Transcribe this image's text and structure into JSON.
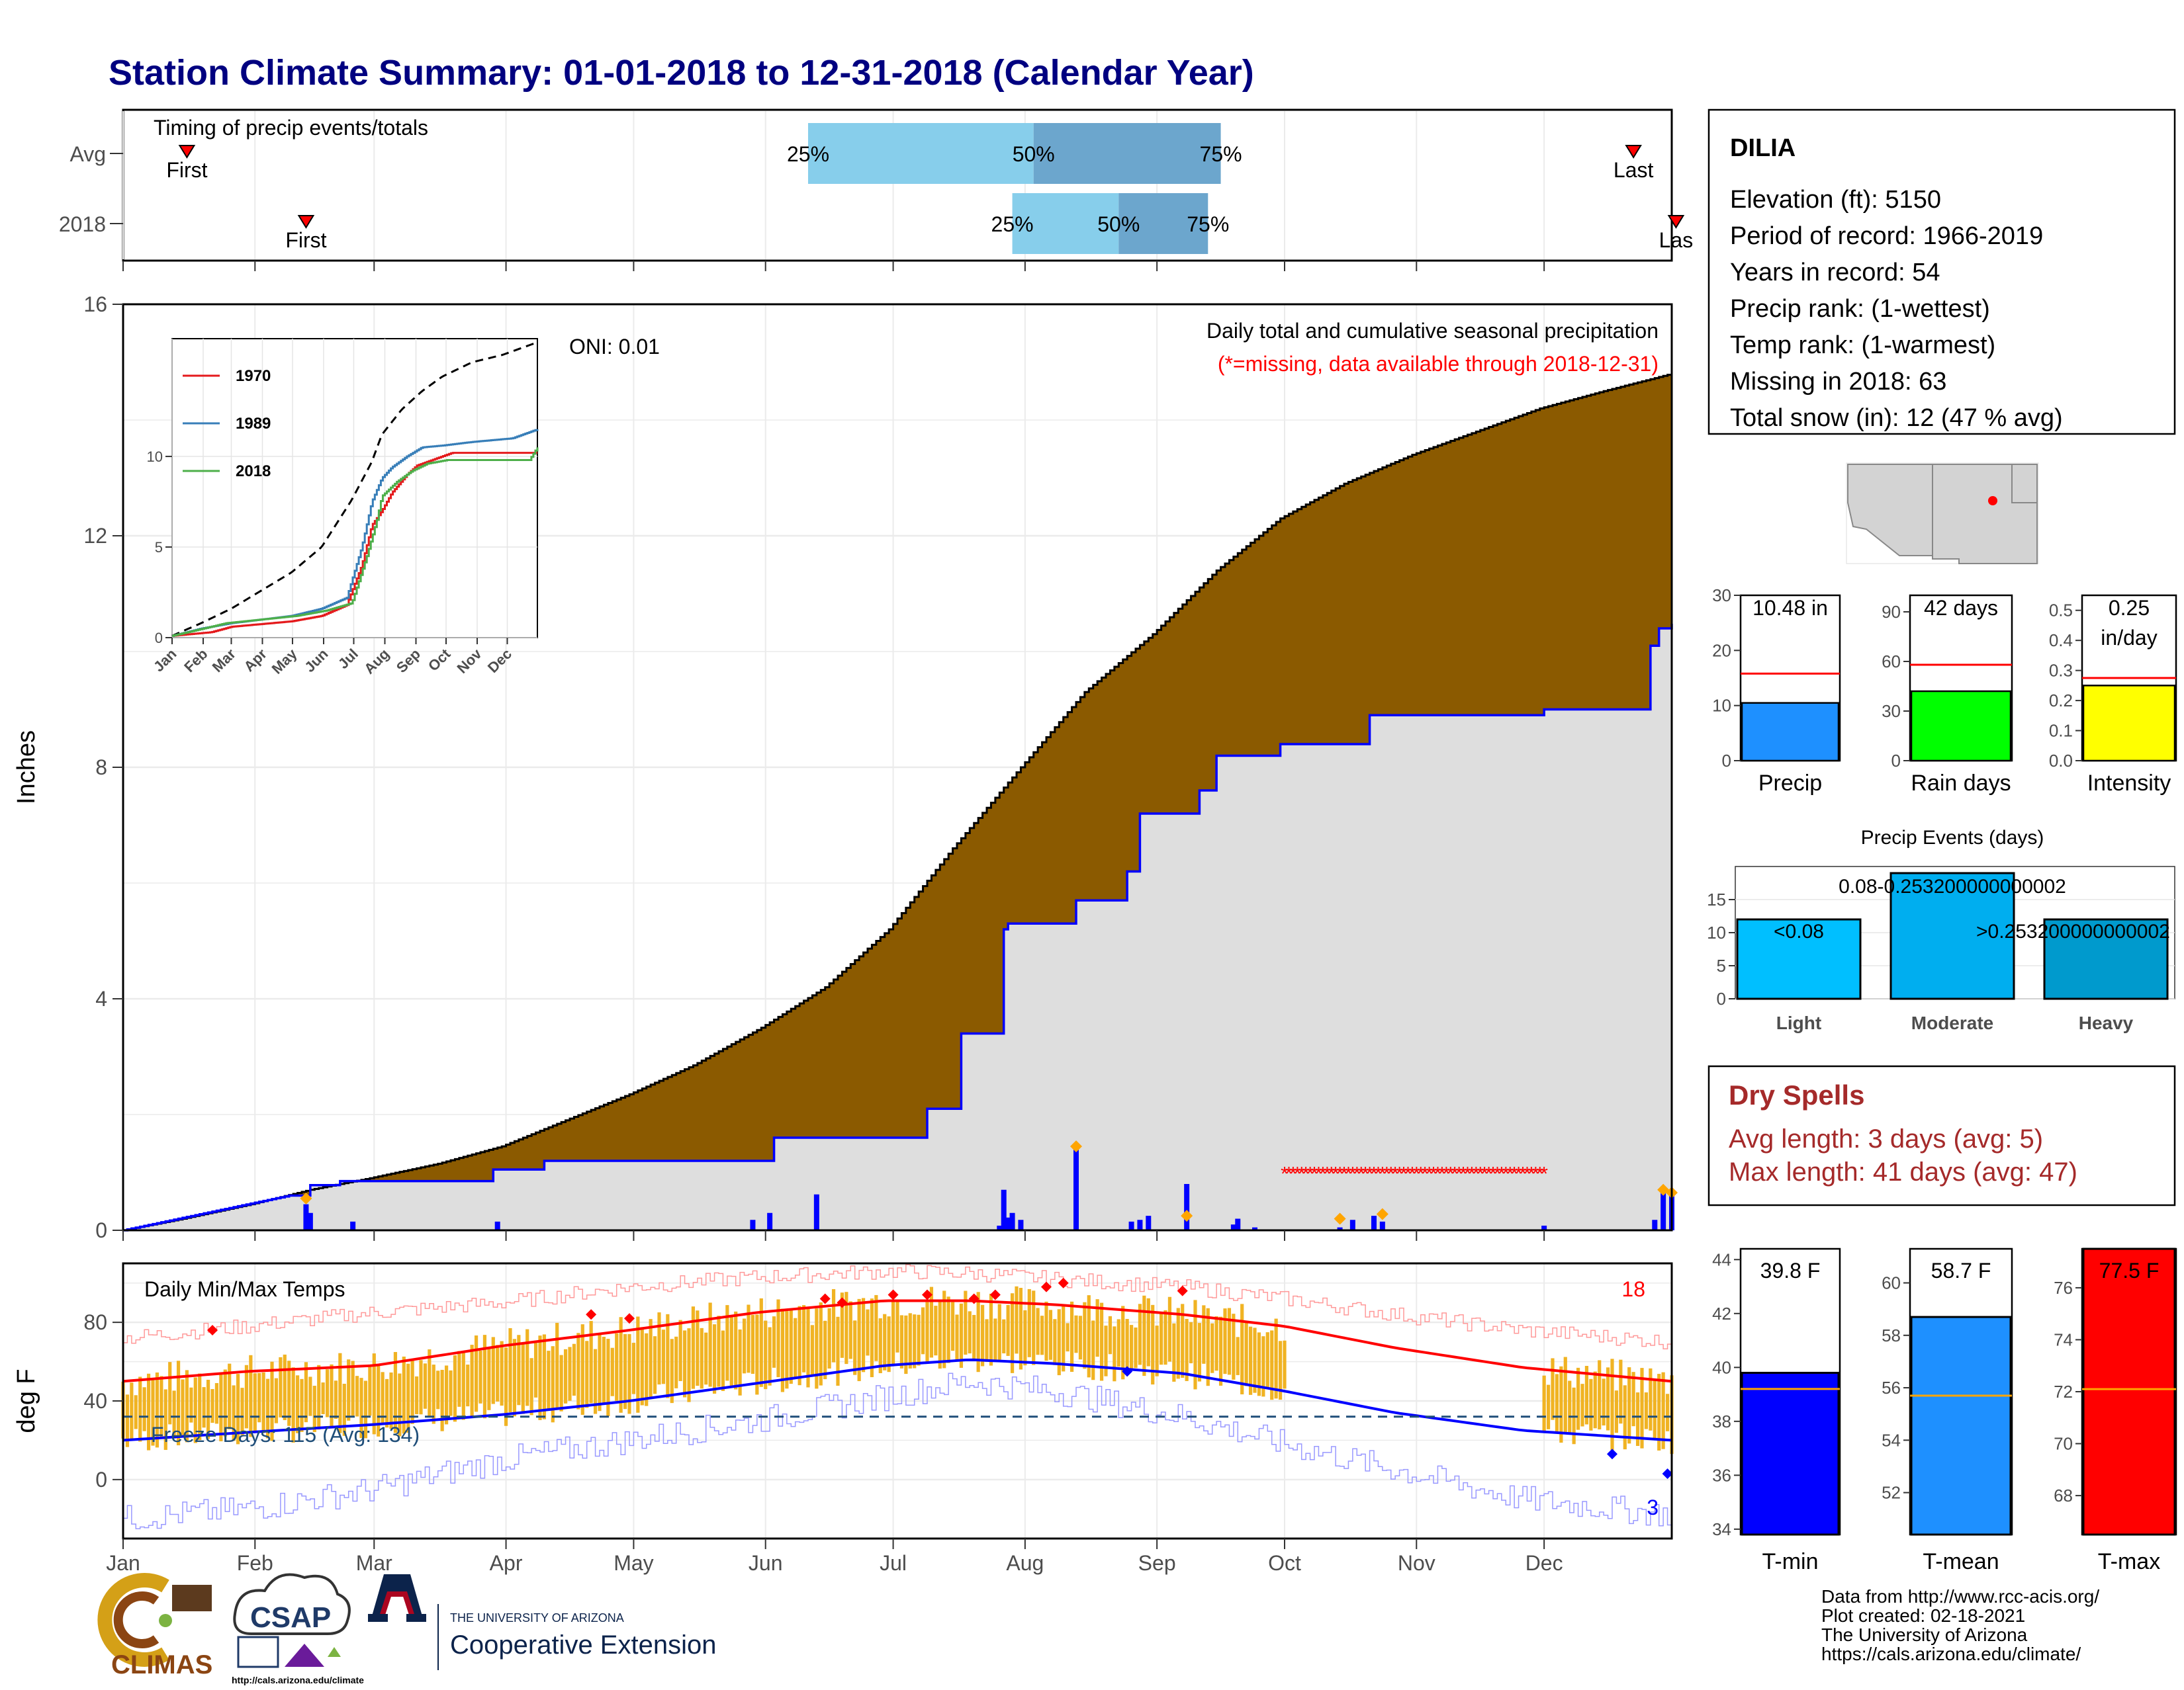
{
  "title": "Station Climate Summary: 01-01-2018 to 12-31-2018 (Calendar Year)",
  "colors": {
    "title": "#000080",
    "brown": "#8B5A00",
    "gray_fill": "#DEDEDE",
    "blue": "#0000FF",
    "light_blue": "#87CEEB",
    "mid_blue": "#6CA6CD",
    "orange": "#F0B323",
    "red": "#FF0000",
    "green": "#00FF00",
    "yellow": "#FFFF00",
    "dodger": "#1E90FF",
    "deep_sky": "#00BFFF",
    "dry_red": "#A52A2A",
    "navy_dash": "#1F4E79"
  },
  "months": [
    "Jan",
    "Feb",
    "Mar",
    "Apr",
    "May",
    "Jun",
    "Jul",
    "Aug",
    "Sep",
    "Oct",
    "Nov",
    "Dec"
  ],
  "timing": {
    "label": "Timing of precip events/totals",
    "rows": [
      {
        "name": "Avg",
        "first_label": "First",
        "last_label": "Last",
        "first_doy": 16,
        "last_doy": 356,
        "p25_label": "25%",
        "p50_label": "50%",
        "p75_label": "75%",
        "p25": 162,
        "p50": 215,
        "p75": 259
      },
      {
        "name": "2018",
        "first_label": "First",
        "last_label": "Las",
        "first_doy": 44,
        "last_doy": 366,
        "p25_label": "25%",
        "p50_label": "50%",
        "p75_label": "75%",
        "p25": 210,
        "p50": 235,
        "p75": 256
      }
    ]
  },
  "precip_panel": {
    "subtitle": "Daily total and cumulative seasonal precipitation",
    "missing_note": "(*=missing, data available through 2018-12-31)",
    "oni": "ONI: 0.01",
    "ylabel": "Inches",
    "y_ticks": [
      "0",
      "4",
      "8",
      "12",
      "16"
    ],
    "chart_data": {
      "type": "area",
      "ylim": [
        0,
        16
      ],
      "avg_cumulative": {
        "doy": [
          1,
          15,
          31,
          45,
          59,
          75,
          90,
          105,
          120,
          135,
          151,
          166,
          181,
          196,
          212,
          227,
          243,
          258,
          273,
          288,
          304,
          319,
          334,
          349,
          365
        ],
        "value": [
          0.0,
          0.2,
          0.45,
          0.7,
          0.9,
          1.15,
          1.45,
          1.9,
          2.35,
          2.85,
          3.5,
          4.2,
          5.2,
          6.6,
          8.0,
          9.3,
          10.3,
          11.4,
          12.3,
          12.9,
          13.4,
          13.8,
          14.2,
          14.5,
          14.8
        ]
      },
      "obs_cumulative": {
        "doy": [
          1,
          40,
          45,
          52,
          88,
          100,
          124,
          154,
          190,
          198,
          208,
          209,
          225,
          237,
          240,
          254,
          258,
          273,
          294,
          335,
          357,
          360,
          362,
          365
        ],
        "value": [
          0.0,
          0.6,
          0.78,
          0.85,
          1.05,
          1.2,
          1.2,
          1.6,
          2.1,
          3.4,
          5.2,
          5.3,
          5.7,
          6.2,
          7.2,
          7.6,
          8.2,
          8.4,
          8.9,
          9.0,
          9.0,
          10.1,
          10.4,
          10.48
        ]
      },
      "daily_bars": {
        "doy": [
          44,
          45,
          55,
          89,
          149,
          153,
          164,
          207,
          208,
          209,
          210,
          212,
          225,
          238,
          240,
          242,
          251,
          262,
          263,
          267,
          287,
          290,
          295,
          297,
          335,
          361,
          363,
          365
        ],
        "value": [
          0.45,
          0.3,
          0.15,
          0.15,
          0.18,
          0.3,
          0.62,
          0.08,
          0.7,
          0.22,
          0.3,
          0.18,
          1.45,
          0.15,
          0.18,
          0.25,
          0.8,
          0.1,
          0.2,
          0.05,
          0.05,
          0.18,
          0.25,
          0.15,
          0.08,
          0.18,
          0.7,
          0.6
        ]
      },
      "missing_markers": {
        "start_doy": 274,
        "end_doy": 335,
        "value": 1.0,
        "symbol": "*"
      }
    }
  },
  "inset": {
    "y_ticks": [
      "0",
      "5",
      "10"
    ],
    "x_ticks": [
      "Jan",
      "Feb",
      "Mar",
      "Apr",
      "May",
      "Jun",
      "Jul",
      "Aug",
      "Sep",
      "Oct",
      "Nov",
      "Dec"
    ],
    "legend": [
      {
        "label": "1970",
        "color": "#E41A1C"
      },
      {
        "label": "1989",
        "color": "#377EB8"
      },
      {
        "label": "2018",
        "color": "#4DAF4A"
      }
    ],
    "chart_data": {
      "type": "line",
      "ylim": [
        0,
        16.5
      ],
      "avg": {
        "doy": [
          1,
          30,
          60,
          90,
          120,
          150,
          180,
          200,
          210,
          230,
          250,
          270,
          300,
          330,
          365
        ],
        "value": [
          0.1,
          0.8,
          1.6,
          2.6,
          3.6,
          5.0,
          7.6,
          9.7,
          11.2,
          12.6,
          13.6,
          14.4,
          15.2,
          15.6,
          16.3
        ]
      },
      "series": [
        {
          "name": "1970",
          "doy": [
            1,
            40,
            60,
            100,
            120,
            150,
            175,
            190,
            200,
            210,
            220,
            235,
            245,
            260,
            280,
            320,
            365
          ],
          "value": [
            0.1,
            0.3,
            0.6,
            0.8,
            0.9,
            1.2,
            1.8,
            4.0,
            6.2,
            7.0,
            8.0,
            9.0,
            9.5,
            9.8,
            10.2,
            10.2,
            10.2
          ]
        },
        {
          "name": "1989",
          "doy": [
            1,
            30,
            60,
            90,
            120,
            150,
            175,
            190,
            200,
            210,
            220,
            235,
            250,
            270,
            300,
            340,
            365
          ],
          "value": [
            0.1,
            0.5,
            0.8,
            1.0,
            1.2,
            1.6,
            2.2,
            5.0,
            7.5,
            8.8,
            9.4,
            10.0,
            10.5,
            10.6,
            10.8,
            11.0,
            11.5
          ]
        },
        {
          "name": "2018",
          "doy": [
            1,
            40,
            55,
            90,
            125,
            155,
            180,
            195,
            205,
            210,
            225,
            240,
            255,
            275,
            295,
            335,
            357,
            365
          ],
          "value": [
            0.1,
            0.6,
            0.8,
            1.0,
            1.2,
            1.5,
            1.9,
            4.5,
            6.5,
            7.8,
            8.6,
            9.2,
            9.6,
            9.8,
            9.8,
            9.8,
            9.8,
            10.5
          ]
        }
      ]
    }
  },
  "temp_panel": {
    "label": "Daily Min/Max Temps",
    "ylabel": "deg F",
    "y_ticks": [
      "0",
      "40",
      "80"
    ],
    "freeze_label": "Freeze Days: 115 (Avg: 134)",
    "count_high": "18",
    "count_low": "3",
    "chart_data": {
      "type": "line",
      "ylim": [
        -30,
        110
      ],
      "freeze_line": 32,
      "avg_max": {
        "doy": [
          1,
          30,
          60,
          90,
          120,
          150,
          180,
          200,
          220,
          250,
          274,
          300,
          330,
          365
        ],
        "value": [
          50,
          55,
          58,
          68,
          76,
          85,
          91,
          91,
          89,
          84,
          78,
          67,
          57,
          50
        ]
      },
      "avg_min": {
        "doy": [
          1,
          30,
          60,
          90,
          120,
          150,
          180,
          200,
          220,
          250,
          274,
          300,
          330,
          365
        ],
        "value": [
          20,
          24,
          28,
          33,
          40,
          49,
          58,
          61,
          59,
          54,
          45,
          34,
          25,
          20
        ]
      },
      "rec_high": {
        "doy": [
          1,
          30,
          60,
          90,
          120,
          150,
          180,
          200,
          220,
          250,
          274,
          300,
          330,
          365
        ],
        "value": [
          72,
          78,
          85,
          90,
          98,
          103,
          106,
          105,
          102,
          98,
          92,
          84,
          76,
          70
        ]
      },
      "rec_low": {
        "doy": [
          1,
          30,
          60,
          90,
          120,
          150,
          180,
          200,
          220,
          250,
          274,
          300,
          330,
          365
        ],
        "value": [
          -20,
          -15,
          -5,
          10,
          20,
          30,
          42,
          50,
          45,
          32,
          18,
          5,
          -10,
          -18
        ]
      },
      "obs_window": [
        [
          1,
          274
        ],
        [
          335,
          365
        ]
      ]
    }
  },
  "station": {
    "name": "DILIA",
    "lines": [
      "Elevation (ft): 5150",
      "Period of record: 1966-2019",
      "Years in record: 54",
      "Precip rank:  (1-wettest)",
      "Temp rank:  (1-warmest)",
      "Missing in 2018: 63",
      "Total snow (in): 12 (47 % avg)"
    ]
  },
  "mini_bars": [
    {
      "label": "Precip",
      "value_label": "10.48 in",
      "value": 10.48,
      "avg": 15.8,
      "ymax": 30,
      "ticks": [
        "0",
        "10",
        "20",
        "30"
      ],
      "tick_vals": [
        0,
        10,
        20,
        30
      ],
      "color": "#1E90FF"
    },
    {
      "label": "Rain days",
      "value_label": "42 days",
      "value": 42,
      "avg": 58,
      "ymax": 100,
      "ticks": [
        "0",
        "30",
        "60",
        "90"
      ],
      "tick_vals": [
        0,
        30,
        60,
        90
      ],
      "color": "#00FF00"
    },
    {
      "label": "Intensity",
      "value_label": "0.25",
      "value_label2": "in/day",
      "value": 0.25,
      "avg": 0.275,
      "ymax": 0.55,
      "ticks": [
        "0.0",
        "0.1",
        "0.2",
        "0.3",
        "0.4",
        "0.5"
      ],
      "tick_vals": [
        0,
        0.1,
        0.2,
        0.3,
        0.4,
        0.5
      ],
      "color": "#FFFF00"
    }
  ],
  "events": {
    "title": "Precip Events (days)",
    "y_ticks": [
      "0",
      "5",
      "10",
      "15"
    ],
    "chart_data": {
      "type": "bar",
      "categories": [
        "Light",
        "Moderate",
        "Heavy"
      ],
      "values": [
        12,
        19,
        12
      ],
      "ylim": [
        0,
        20
      ],
      "bar_labels": [
        "<0.08",
        "0.08-0.253200000000002",
        ">0.253200000000002"
      ],
      "colors": [
        "#00BFFF",
        "#00AEEF",
        "#009ACD"
      ]
    }
  },
  "dry": {
    "title": "Dry Spells",
    "avg_line": "Avg length: 3 days (avg: 5)",
    "max_line": "Max length: 41 days (avg: 47)"
  },
  "temp_bars": [
    {
      "label": "T-min",
      "value_label": "39.8 F",
      "value": 39.8,
      "avg": 39.2,
      "ymin": 33.8,
      "ymax": 44.4,
      "ticks": [
        "34",
        "36",
        "38",
        "40",
        "42",
        "44"
      ],
      "tick_vals": [
        34,
        36,
        38,
        40,
        42,
        44
      ],
      "color": "#0000FF"
    },
    {
      "label": "T-mean",
      "value_label": "58.7 F",
      "value": 58.7,
      "avg": 55.7,
      "ymin": 50.4,
      "ymax": 61.3,
      "ticks": [
        "52",
        "54",
        "56",
        "58",
        "60"
      ],
      "tick_vals": [
        52,
        54,
        56,
        58,
        60
      ],
      "color": "#1E90FF"
    },
    {
      "label": "T-max",
      "value_label": "77.5 F",
      "value": 77.5,
      "avg": 72.1,
      "ymin": 66.5,
      "ymax": 77.5,
      "ticks": [
        "68",
        "70",
        "72",
        "74",
        "76"
      ],
      "tick_vals": [
        68,
        70,
        72,
        74,
        76
      ],
      "color": "#FF0000"
    }
  ],
  "footer": {
    "source": "Data from http://www.rcc-acis.org/",
    "created": "Plot created: 02-18-2021",
    "org": "The University of Arizona",
    "url": "https://cals.arizona.edu/climate/",
    "climas": "CLIMAS",
    "csap": "CSAP",
    "csap_url": "http://cals.arizona.edu/climate",
    "ua_small": "THE UNIVERSITY OF ARIZONA",
    "ua_big": "Cooperative Extension"
  }
}
